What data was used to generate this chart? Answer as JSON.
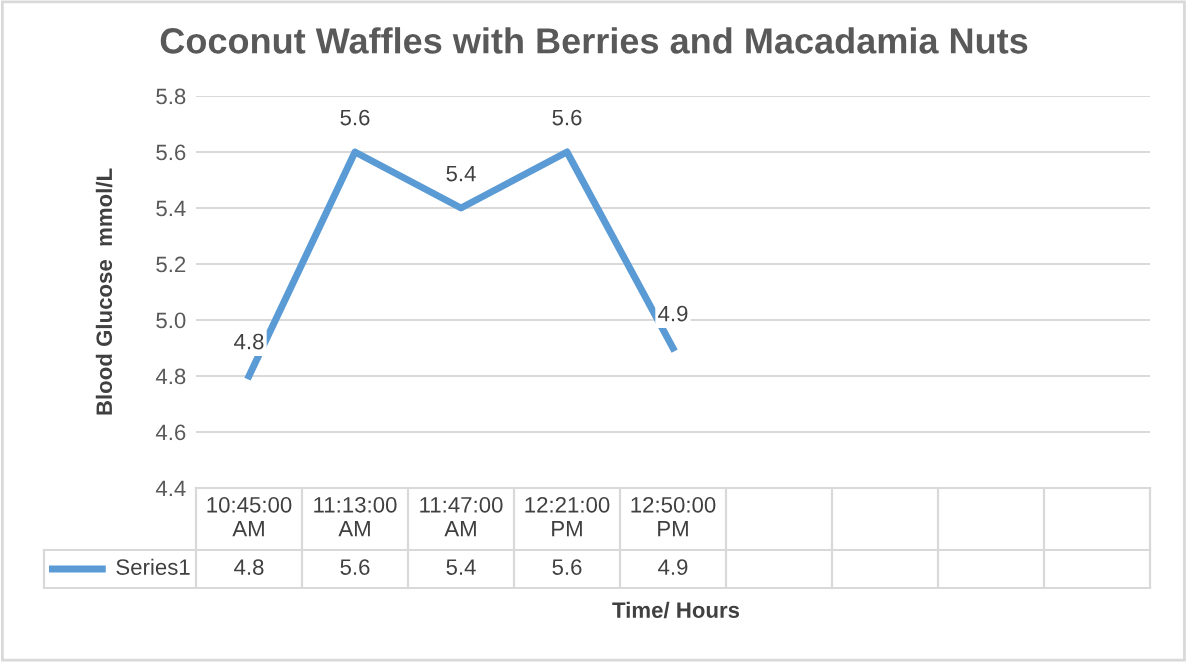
{
  "chart_data": {
    "type": "line",
    "title": "Coconut Waffles with Berries and Macadamia Nuts",
    "xlabel": "Time/ Hours",
    "ylabel": "Blood Glucose  mmol/L",
    "categories": [
      "10:45:00 AM",
      "11:13:00 AM",
      "11:47:00 AM",
      "12:21:00 PM",
      "12:50:00 PM",
      null,
      null,
      null,
      null
    ],
    "series": [
      {
        "name": "Series1",
        "color": "#5b9bd5",
        "values": [
          4.8,
          5.6,
          5.4,
          5.6,
          4.9,
          null,
          null,
          null,
          null
        ],
        "value_labels": [
          "4.8",
          "5.6",
          "5.4",
          "5.6",
          "4.9",
          null,
          null,
          null,
          null
        ]
      }
    ],
    "ylim": [
      4.4,
      5.8
    ],
    "yticks": [
      4.4,
      4.6,
      4.8,
      {
        "value": 5.0,
        "label": "5.0"
      },
      5.2,
      5.4,
      5.6,
      5.8
    ],
    "annotations": [
      "4.8",
      "5.6",
      "5.4",
      "5.6",
      "4.9"
    ],
    "grid": "y",
    "data_labels": true,
    "legend": "bottom",
    "marker": "none",
    "line_style": "solid"
  }
}
